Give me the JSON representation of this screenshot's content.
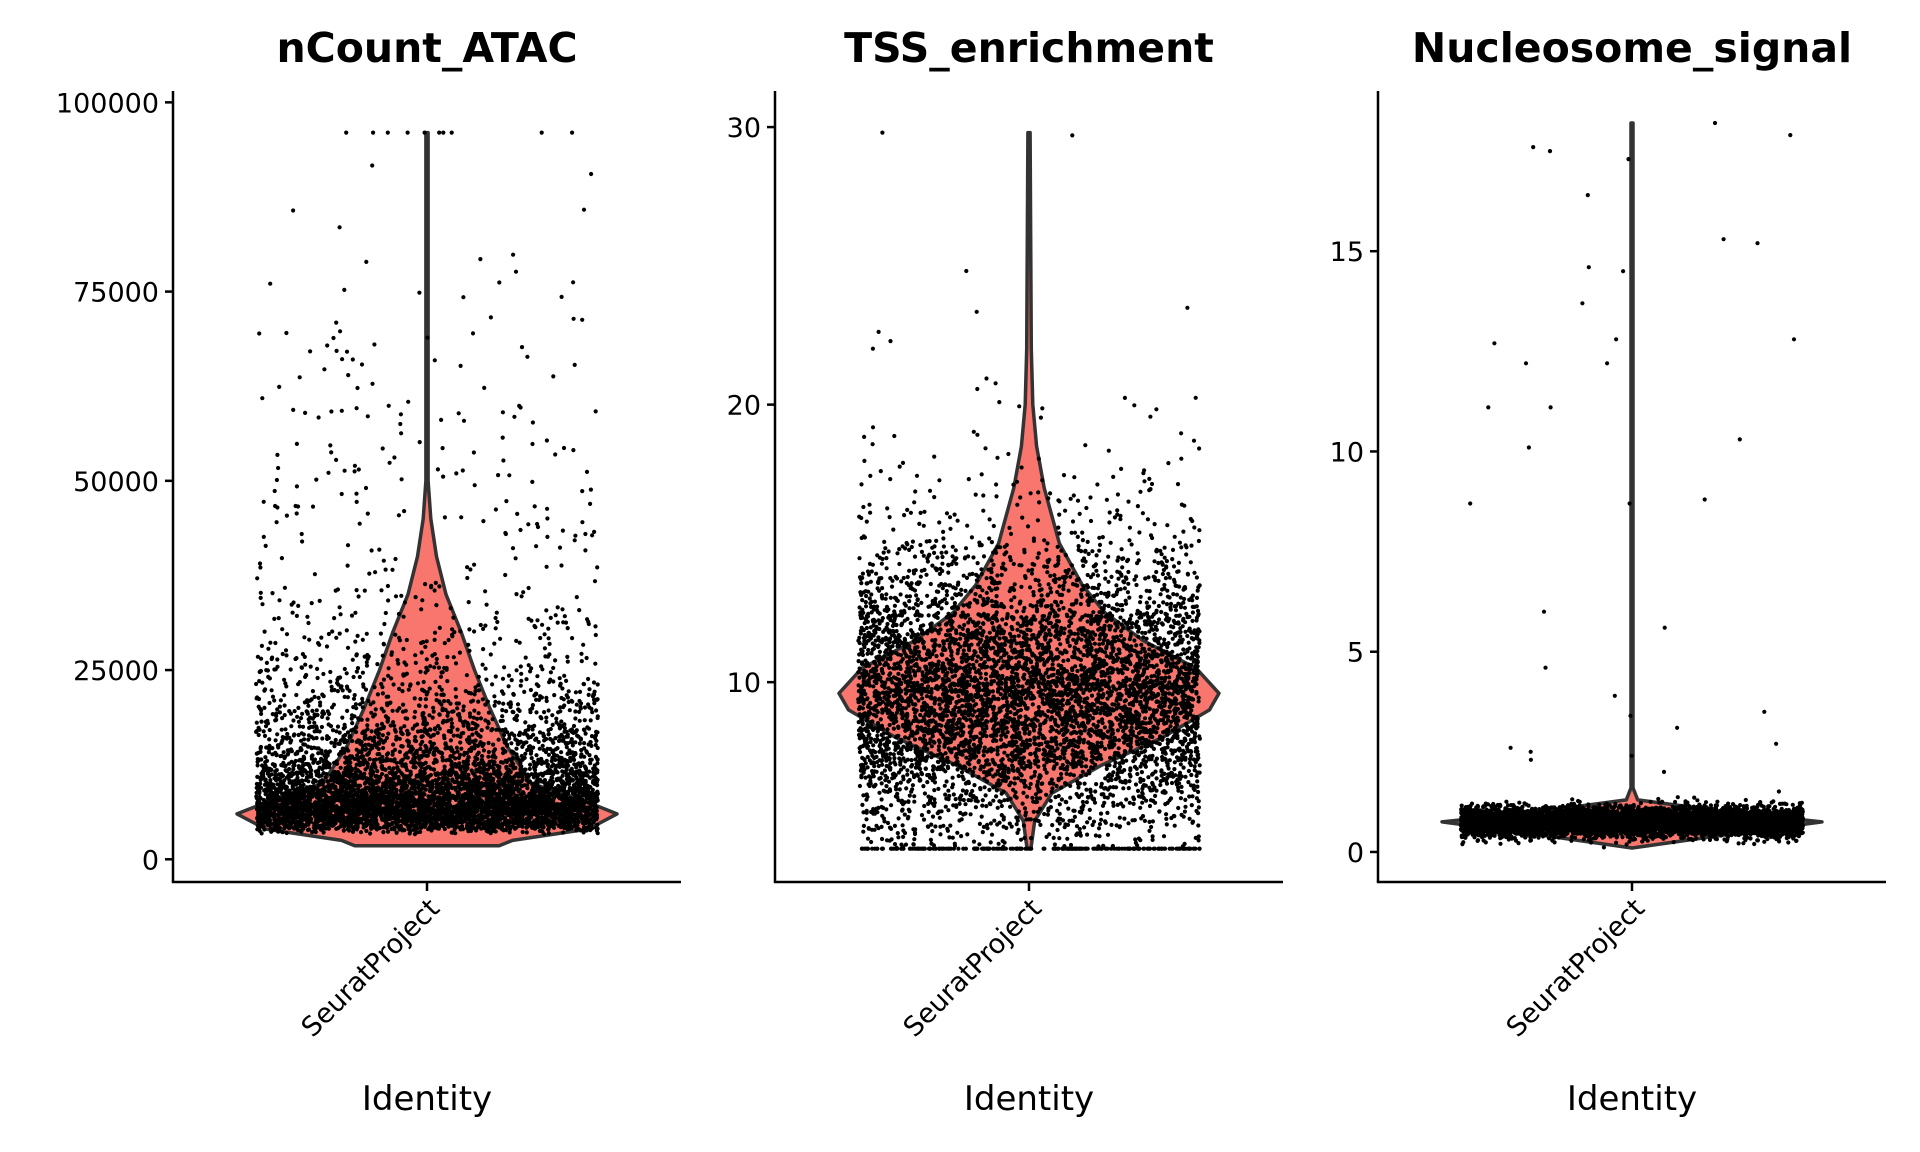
{
  "colors": {
    "violin_fill": "#F8766D",
    "violin_outline": "#333333",
    "points": "#000000"
  },
  "chart_data": [
    {
      "type": "violin",
      "title": "nCount_ATAC",
      "xlabel": "Identity",
      "ylabel": "",
      "categories": [
        "SeuratProject"
      ],
      "ylim": [
        -3000,
        101500
      ],
      "yticks": [
        0,
        25000,
        50000,
        75000,
        100000
      ],
      "ytick_labels": [
        "0",
        "25000",
        "50000",
        "75000",
        "100000"
      ],
      "n_points": 6000,
      "point_distribution": {
        "mode": 6000,
        "min": 1500,
        "p90": 28000,
        "max": 96000,
        "log_spread": 0.75
      },
      "violin_profile": [
        [
          1800,
          0.38
        ],
        [
          2500,
          0.45
        ],
        [
          4000,
          0.85
        ],
        [
          6000,
          1.0
        ],
        [
          8000,
          0.8
        ],
        [
          10000,
          0.55
        ],
        [
          15000,
          0.42
        ],
        [
          20000,
          0.33
        ],
        [
          25000,
          0.25
        ],
        [
          30000,
          0.18
        ],
        [
          35000,
          0.1
        ],
        [
          40000,
          0.05
        ],
        [
          45000,
          0.02
        ],
        [
          50000,
          0.006
        ],
        [
          96000,
          0.006
        ]
      ]
    },
    {
      "type": "violin",
      "title": "TSS_enrichment",
      "xlabel": "Identity",
      "ylabel": "",
      "categories": [
        "SeuratProject"
      ],
      "ylim": [
        2.8,
        31.3
      ],
      "yticks": [
        10,
        20,
        30
      ],
      "ytick_labels": [
        "10",
        "20",
        "30"
      ],
      "n_points": 6000,
      "point_distribution": {
        "mode": 9.5,
        "sd": 2.6,
        "min": 4,
        "max": 29.8
      },
      "violin_profile": [
        [
          4,
          0.01
        ],
        [
          5,
          0.03
        ],
        [
          6,
          0.12
        ],
        [
          7,
          0.38
        ],
        [
          8,
          0.7
        ],
        [
          9,
          0.95
        ],
        [
          9.6,
          1.0
        ],
        [
          10.5,
          0.88
        ],
        [
          11.5,
          0.6
        ],
        [
          12.5,
          0.4
        ],
        [
          13.5,
          0.28
        ],
        [
          15,
          0.16
        ],
        [
          17,
          0.08
        ],
        [
          18.5,
          0.04
        ],
        [
          20,
          0.02
        ],
        [
          22,
          0.012
        ],
        [
          29.8,
          0.006
        ]
      ]
    },
    {
      "type": "violin",
      "title": "Nucleosome_signal",
      "xlabel": "Identity",
      "ylabel": "",
      "categories": [
        "SeuratProject"
      ],
      "ylim": [
        -0.75,
        19
      ],
      "yticks": [
        0,
        5,
        10,
        15
      ],
      "ytick_labels": [
        "0",
        "5",
        "10",
        "15"
      ],
      "n_points": 6000,
      "point_distribution": {
        "mode": 0.75,
        "sd": 0.18,
        "min": 0.1,
        "max": 18.2
      },
      "outliers": [
        18.2,
        17.9,
        17.6,
        17.5,
        17.3,
        16.4,
        15.3,
        15.2,
        14.6,
        14.5,
        13.7,
        12.8,
        12.8,
        12.7,
        12.2,
        12.2,
        11.1,
        11.1,
        10.3,
        10.1,
        8.8,
        8.7,
        8.7,
        6.0,
        5.6,
        4.6,
        3.9,
        3.5,
        3.4,
        3.1,
        2.7,
        2.6,
        2.5,
        2.4,
        2.3,
        2.0
      ],
      "violin_profile": [
        [
          0.1,
          0.0
        ],
        [
          0.5,
          0.6
        ],
        [
          0.75,
          1.0
        ],
        [
          1.0,
          0.5
        ],
        [
          1.3,
          0.03
        ],
        [
          1.6,
          0.005
        ],
        [
          18.2,
          0.005
        ]
      ]
    }
  ]
}
